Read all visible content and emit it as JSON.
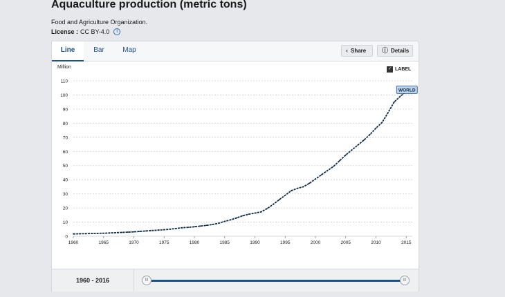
{
  "header": {
    "title": "Aquaculture production (metric tons)",
    "source": "Food and Agriculture Organization.",
    "license_label": "License :",
    "license_value": "CC BY-4.0"
  },
  "tabs": [
    {
      "label": "Line",
      "active": true
    },
    {
      "label": "Bar",
      "active": false
    },
    {
      "label": "Map",
      "active": false
    }
  ],
  "toolbar": {
    "share_label": "Share",
    "details_label": "Details"
  },
  "label_toggle": {
    "label": "LABEL",
    "checked": true
  },
  "footer": {
    "range_label": "1960 - 2016"
  },
  "icons": {
    "share": "share-icon",
    "details": "info-icon",
    "handle": "slider-handle-grip-icon"
  },
  "colors": {
    "line": "#0e2a47",
    "accent": "#1c4f8c",
    "badge_bg": "#bcd3ea",
    "badge_border": "#1c4f8c"
  },
  "chart_data": {
    "type": "line",
    "ylabel": "Million",
    "ylim": [
      0,
      110
    ],
    "xlim": [
      1960,
      2016
    ],
    "grid": true,
    "y_ticks": [
      0,
      10,
      20,
      30,
      40,
      50,
      60,
      70,
      80,
      90,
      100,
      110
    ],
    "x_ticks": [
      1960,
      1965,
      1970,
      1975,
      1980,
      1985,
      1990,
      1995,
      2000,
      2005,
      2010,
      2015
    ],
    "series": [
      {
        "name": "WORLD",
        "x": [
          1960,
          1961,
          1962,
          1963,
          1964,
          1965,
          1966,
          1967,
          1968,
          1969,
          1970,
          1971,
          1972,
          1973,
          1974,
          1975,
          1976,
          1977,
          1978,
          1979,
          1980,
          1981,
          1982,
          1983,
          1984,
          1985,
          1986,
          1987,
          1988,
          1989,
          1990,
          1991,
          1992,
          1993,
          1994,
          1995,
          1996,
          1997,
          1998,
          1999,
          2000,
          2001,
          2002,
          2003,
          2004,
          2005,
          2006,
          2007,
          2008,
          2009,
          2010,
          2011,
          2012,
          2013,
          2014,
          2015,
          2016
        ],
        "values": [
          1.6,
          1.7,
          1.8,
          1.9,
          2.0,
          2.1,
          2.3,
          2.5,
          2.7,
          2.9,
          3.1,
          3.4,
          3.7,
          4.0,
          4.3,
          4.6,
          5.0,
          5.5,
          6.0,
          6.3,
          6.7,
          7.2,
          7.7,
          8.3,
          9.2,
          10.5,
          11.6,
          13.0,
          14.5,
          15.6,
          16.4,
          17.2,
          19.5,
          22.5,
          25.8,
          29.0,
          32.2,
          33.9,
          35.0,
          37.5,
          40.5,
          43.5,
          46.5,
          49.5,
          53.5,
          57.5,
          61.0,
          64.5,
          68.0,
          72.0,
          76.5,
          80.5,
          87.5,
          95.0,
          99.0,
          102.5,
          106.0
        ]
      }
    ],
    "annotation": {
      "text": "WORLD",
      "x": 2015,
      "y": 102.5
    }
  }
}
